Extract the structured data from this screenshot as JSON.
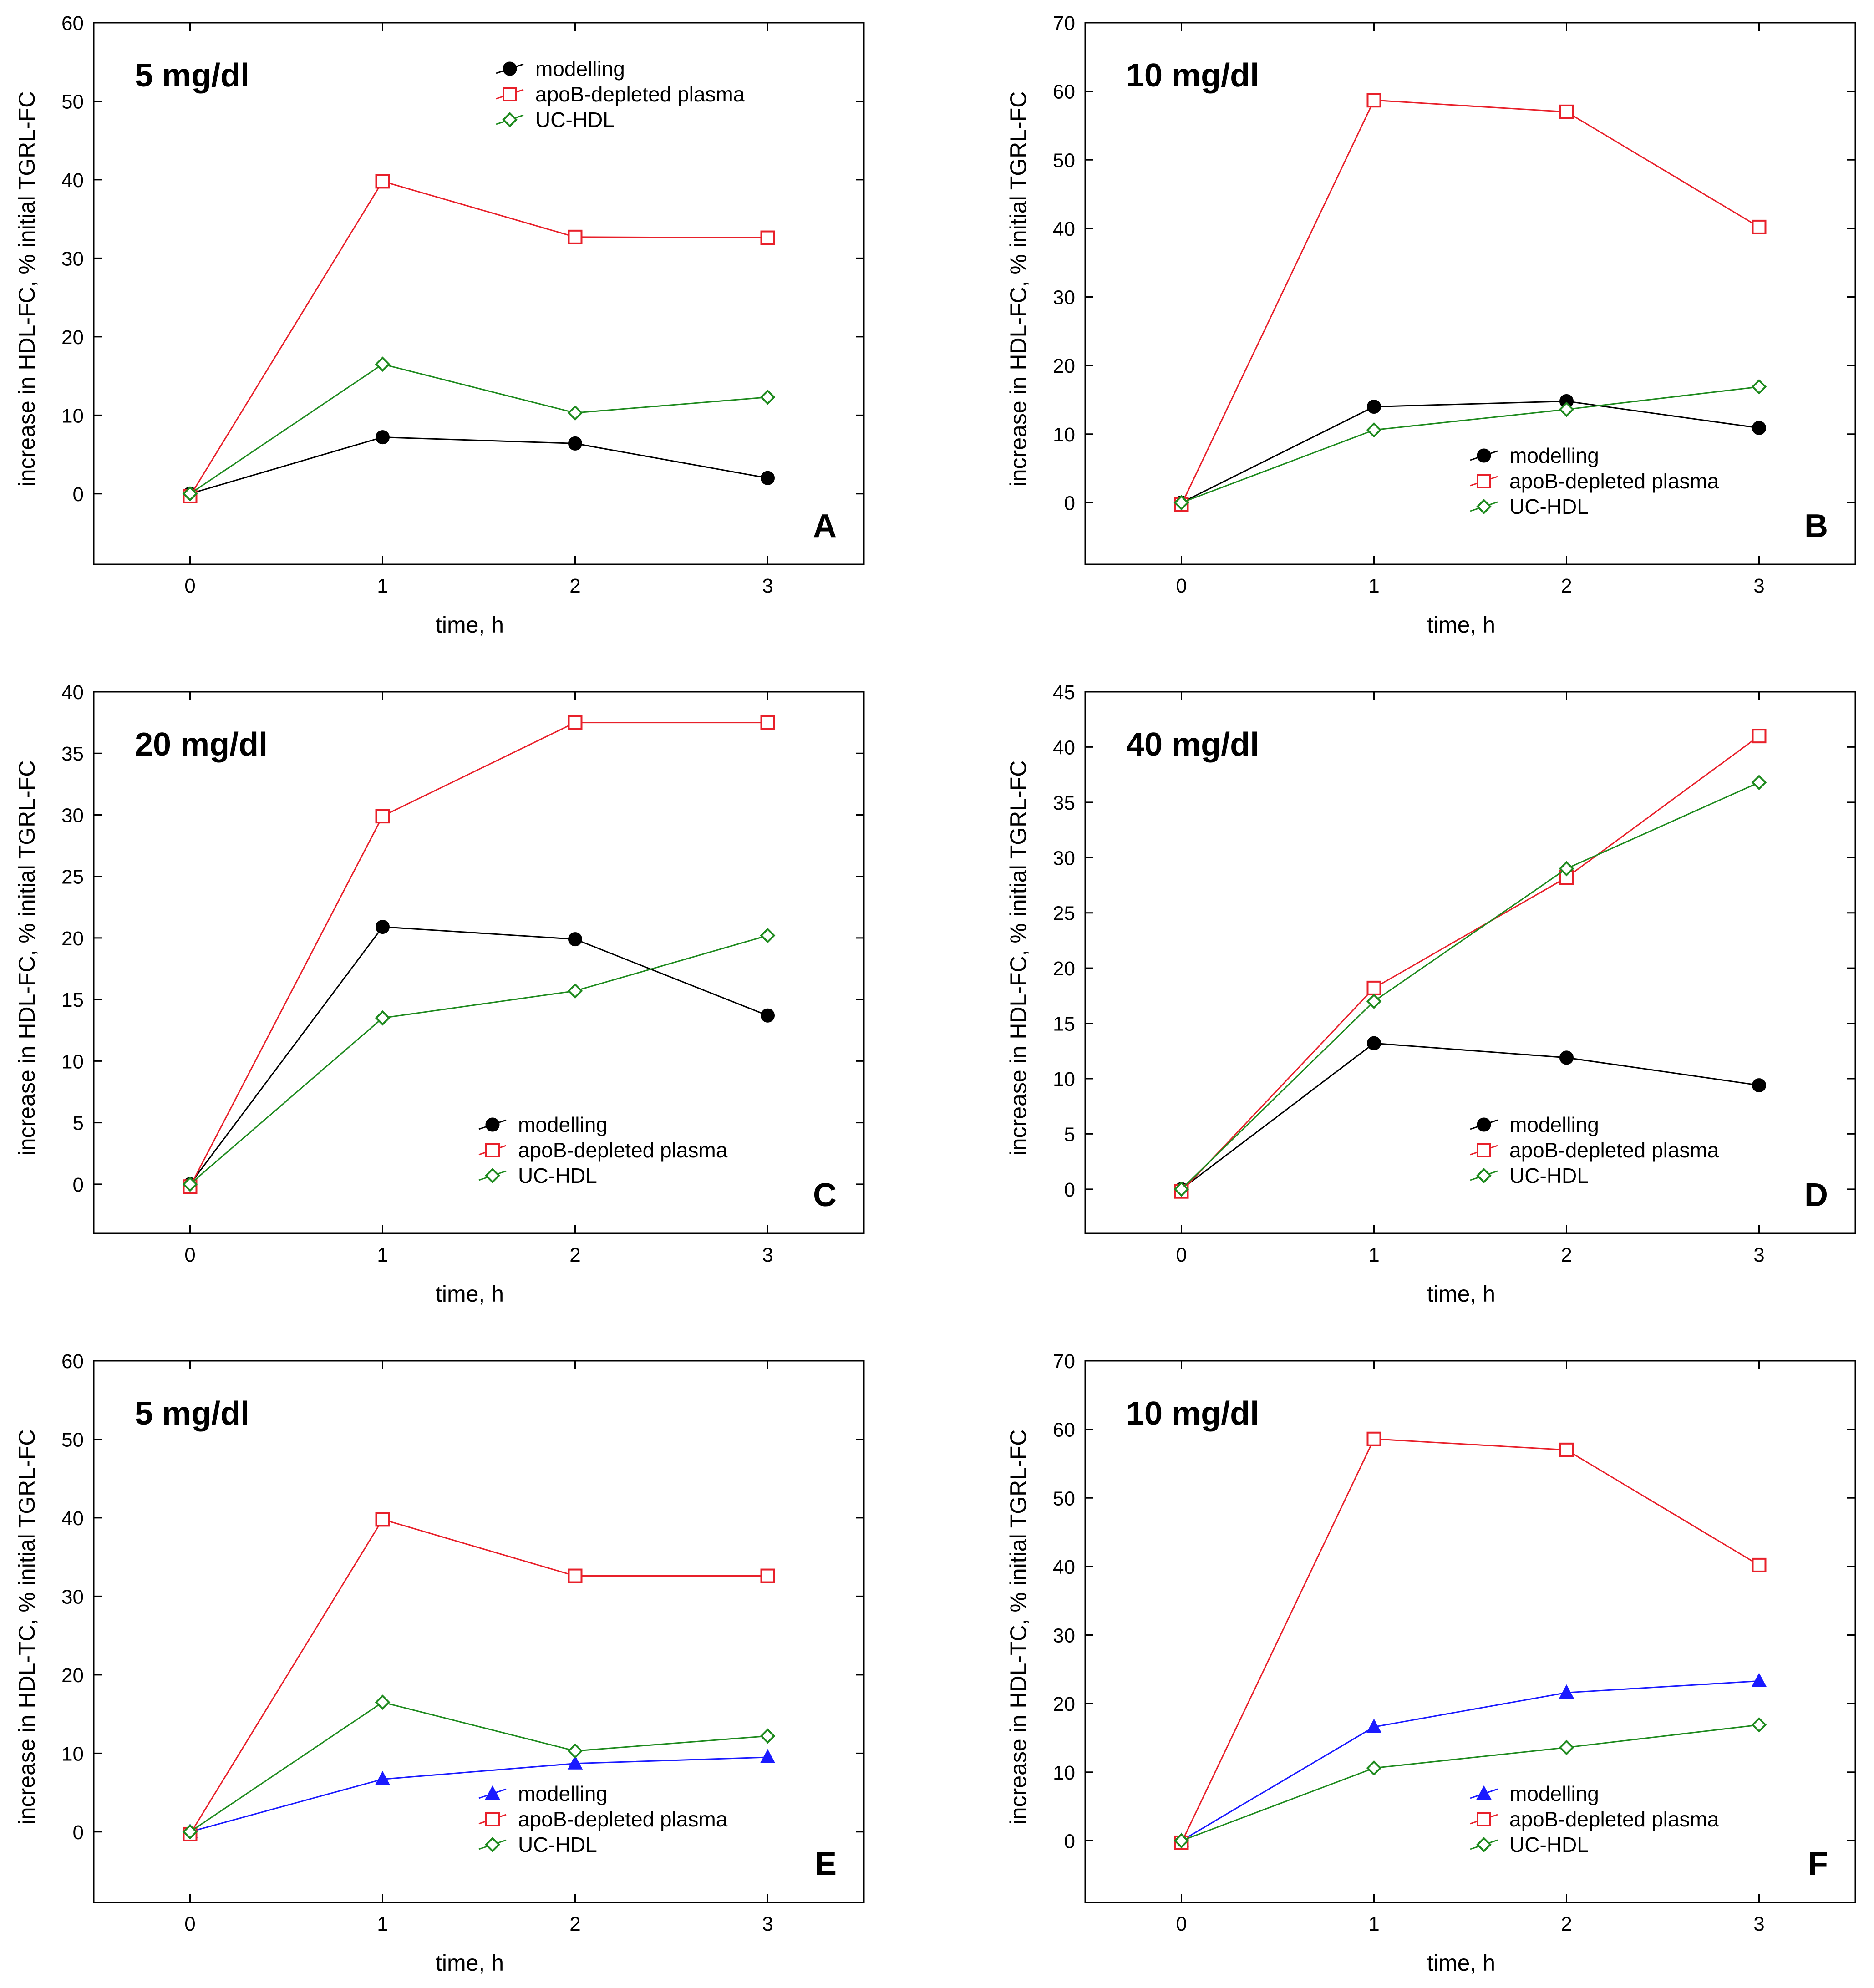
{
  "colors": {
    "modelling_black": "#000000",
    "modelling_blue": "#1a1aff",
    "apob": "#e8202a",
    "ucHdl": "#1e8a1e",
    "frame": "#000000"
  },
  "chart_data": [
    {
      "type": "line",
      "panel": "A",
      "title": "5 mg/dl",
      "xlabel": "time, h",
      "ylabel": "increase in HDL-FC, % initial TGRL-FC",
      "x": [
        0,
        1,
        2,
        3
      ],
      "xticks": [
        "0",
        "1",
        "2",
        "3"
      ],
      "xlim": [
        -0.5,
        3.5
      ],
      "ylim": [
        -9,
        60
      ],
      "yticks": [
        "0",
        "10",
        "20",
        "30",
        "40",
        "50",
        "60"
      ],
      "legend_position": "top-right",
      "series": [
        {
          "name": "modelling",
          "marker": "filled-circle",
          "color": "#000000",
          "values": [
            0,
            7.2,
            6.4,
            2.0
          ]
        },
        {
          "name": "apoB-depleted plasma",
          "marker": "open-square",
          "color": "#e8202a",
          "values": [
            -0.3,
            39.8,
            32.7,
            32.6
          ]
        },
        {
          "name": "UC-HDL",
          "marker": "open-diamond",
          "color": "#1e8a1e",
          "values": [
            0,
            16.5,
            10.3,
            12.3
          ]
        }
      ]
    },
    {
      "type": "line",
      "panel": "B",
      "title": "10 mg/dl",
      "xlabel": "time, h",
      "ylabel": "increase in HDL-FC, % initial TGRL-FC",
      "x": [
        0,
        1,
        2,
        3
      ],
      "xticks": [
        "0",
        "1",
        "2",
        "3"
      ],
      "xlim": [
        -0.5,
        3.5
      ],
      "ylim": [
        -9,
        70
      ],
      "yticks": [
        "0",
        "10",
        "20",
        "30",
        "40",
        "50",
        "60",
        "70"
      ],
      "legend_position": "bottom-right",
      "series": [
        {
          "name": "modelling",
          "marker": "filled-circle",
          "color": "#000000",
          "values": [
            0,
            14.0,
            14.8,
            10.9
          ]
        },
        {
          "name": "apoB-depleted plasma",
          "marker": "open-square",
          "color": "#e8202a",
          "values": [
            -0.3,
            58.7,
            57.0,
            40.2
          ]
        },
        {
          "name": "UC-HDL",
          "marker": "open-diamond",
          "color": "#1e8a1e",
          "values": [
            0,
            10.6,
            13.6,
            16.9
          ]
        }
      ]
    },
    {
      "type": "line",
      "panel": "C",
      "title": "20 mg/dl",
      "xlabel": "time, h",
      "ylabel": "increase in HDL-FC, % initial TGRL-FC",
      "x": [
        0,
        1,
        2,
        3
      ],
      "xticks": [
        "0",
        "1",
        "2",
        "3"
      ],
      "xlim": [
        -0.5,
        3.5
      ],
      "ylim": [
        -4,
        40
      ],
      "yticks": [
        "0",
        "5",
        "10",
        "15",
        "20",
        "25",
        "30",
        "35",
        "40"
      ],
      "legend_position": "bottom-right",
      "series": [
        {
          "name": "modelling",
          "marker": "filled-circle",
          "color": "#000000",
          "values": [
            0,
            20.9,
            19.9,
            13.7
          ]
        },
        {
          "name": "apoB-depleted plasma",
          "marker": "open-square",
          "color": "#e8202a",
          "values": [
            -0.2,
            29.9,
            37.5,
            37.5
          ]
        },
        {
          "name": "UC-HDL",
          "marker": "open-diamond",
          "color": "#1e8a1e",
          "values": [
            0,
            13.5,
            15.7,
            20.2
          ]
        }
      ]
    },
    {
      "type": "line",
      "panel": "D",
      "title": "40 mg/dl",
      "xlabel": "time, h",
      "ylabel": "increase in HDL-FC, % initial TGRL-FC",
      "x": [
        0,
        1,
        2,
        3
      ],
      "xticks": [
        "0",
        "1",
        "2",
        "3"
      ],
      "xlim": [
        -0.5,
        3.5
      ],
      "ylim": [
        -4,
        45
      ],
      "yticks": [
        "0",
        "5",
        "10",
        "15",
        "20",
        "25",
        "30",
        "35",
        "40",
        "45"
      ],
      "legend_position": "bottom-right",
      "series": [
        {
          "name": "modelling",
          "marker": "filled-circle",
          "color": "#000000",
          "values": [
            0,
            13.2,
            11.9,
            9.4
          ]
        },
        {
          "name": "apoB-depleted plasma",
          "marker": "open-square",
          "color": "#e8202a",
          "values": [
            -0.2,
            18.2,
            28.2,
            41.0
          ]
        },
        {
          "name": "UC-HDL",
          "marker": "open-diamond",
          "color": "#1e8a1e",
          "values": [
            0,
            17.0,
            29.0,
            36.8
          ]
        }
      ]
    },
    {
      "type": "line",
      "panel": "E",
      "title": "5 mg/dl",
      "xlabel": "time, h",
      "ylabel": "increase in HDL-TC, % initial TGRL-FC",
      "x": [
        0,
        1,
        2,
        3
      ],
      "xticks": [
        "0",
        "1",
        "2",
        "3"
      ],
      "xlim": [
        -0.5,
        3.5
      ],
      "ylim": [
        -9,
        60
      ],
      "yticks": [
        "0",
        "10",
        "20",
        "30",
        "40",
        "50",
        "60"
      ],
      "legend_position": "bottom-right",
      "series": [
        {
          "name": "modelling",
          "marker": "filled-triangle",
          "color": "#1a1aff",
          "values": [
            0,
            6.7,
            8.7,
            9.5
          ]
        },
        {
          "name": "apoB-depleted plasma",
          "marker": "open-square",
          "color": "#e8202a",
          "values": [
            -0.3,
            39.8,
            32.6,
            32.6
          ]
        },
        {
          "name": "UC-HDL",
          "marker": "open-diamond",
          "color": "#1e8a1e",
          "values": [
            0,
            16.5,
            10.3,
            12.2
          ]
        }
      ]
    },
    {
      "type": "line",
      "panel": "F",
      "title": "10 mg/dl",
      "xlabel": "time, h",
      "ylabel": "increase in HDL-TC, % initial TGRL-FC",
      "x": [
        0,
        1,
        2,
        3
      ],
      "xticks": [
        "0",
        "1",
        "2",
        "3"
      ],
      "xlim": [
        -0.5,
        3.5
      ],
      "ylim": [
        -9,
        70
      ],
      "yticks": [
        "0",
        "10",
        "20",
        "30",
        "40",
        "50",
        "60",
        "70"
      ],
      "legend_position": "bottom-right",
      "series": [
        {
          "name": "modelling",
          "marker": "filled-triangle",
          "color": "#1a1aff",
          "values": [
            0,
            16.6,
            21.6,
            23.3
          ]
        },
        {
          "name": "apoB-depleted plasma",
          "marker": "open-square",
          "color": "#e8202a",
          "values": [
            -0.3,
            58.6,
            57.0,
            40.2
          ]
        },
        {
          "name": "UC-HDL",
          "marker": "open-diamond",
          "color": "#1e8a1e",
          "values": [
            0,
            10.6,
            13.6,
            16.9
          ]
        }
      ]
    }
  ]
}
